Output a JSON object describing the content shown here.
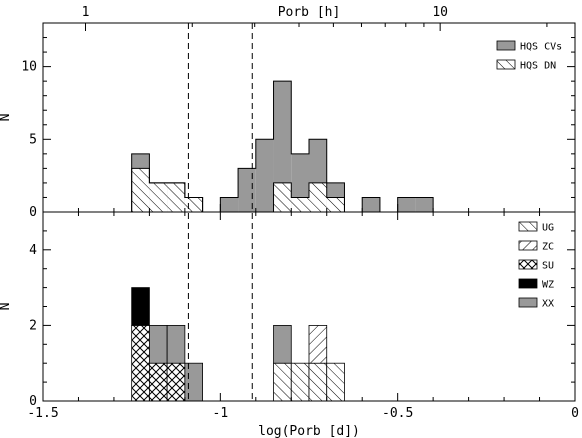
{
  "chart_data": {
    "type": "histogram",
    "x_axis": {
      "label": "log(Porb [d])",
      "range": [
        -1.5,
        0
      ],
      "tick_labels": [
        "-1.5",
        "-1",
        "-0.5",
        "0"
      ],
      "tick_values": [
        -1.5,
        -1,
        -0.5,
        0
      ]
    },
    "top_axis": {
      "label": "Porb [h]",
      "tick_labels": [
        "1",
        "10"
      ],
      "tick_values_hours": [
        1,
        10
      ]
    },
    "reference_lines": [
      -1.09,
      -0.91
    ],
    "panels": [
      {
        "name": "upper",
        "ylabel": "N",
        "ylim": [
          0,
          13
        ],
        "y_tick_labels": [
          "0",
          "5",
          "10"
        ],
        "y_tick_values": [
          0,
          5,
          10
        ],
        "bin_width": 0.05,
        "legend": [
          {
            "label": "HQS CVs",
            "fill": "gray"
          },
          {
            "label": "HQS DN",
            "fill": "hatch-diagonal"
          }
        ],
        "series": [
          {
            "name": "HQS CVs",
            "bins": [
              {
                "start": -1.25,
                "count": 4
              },
              {
                "start": -1.2,
                "count": 2
              },
              {
                "start": -1.15,
                "count": 2
              },
              {
                "start": -1.1,
                "count": 1
              },
              {
                "start": -1.0,
                "count": 1
              },
              {
                "start": -0.95,
                "count": 3
              },
              {
                "start": -0.9,
                "count": 5
              },
              {
                "start": -0.85,
                "count": 9
              },
              {
                "start": -0.8,
                "count": 4
              },
              {
                "start": -0.75,
                "count": 5
              },
              {
                "start": -0.7,
                "count": 2
              },
              {
                "start": -0.6,
                "count": 1
              },
              {
                "start": -0.5,
                "count": 1
              },
              {
                "start": -0.45,
                "count": 1
              }
            ]
          },
          {
            "name": "HQS DN",
            "bins": [
              {
                "start": -1.25,
                "count": 3
              },
              {
                "start": -1.2,
                "count": 2
              },
              {
                "start": -1.15,
                "count": 2
              },
              {
                "start": -1.1,
                "count": 1
              },
              {
                "start": -0.85,
                "count": 2
              },
              {
                "start": -0.8,
                "count": 1
              },
              {
                "start": -0.75,
                "count": 2
              },
              {
                "start": -0.7,
                "count": 1
              }
            ]
          }
        ]
      },
      {
        "name": "lower",
        "ylabel": "N",
        "ylim": [
          0,
          5
        ],
        "y_tick_labels": [
          "0",
          "2",
          "4"
        ],
        "y_tick_values": [
          0,
          2,
          4
        ],
        "bin_width": 0.05,
        "legend": [
          {
            "label": "UG",
            "fill": "hatch-diagonal"
          },
          {
            "label": "ZC",
            "fill": "hatch-backdiagonal"
          },
          {
            "label": "SU",
            "fill": "hatch-cross"
          },
          {
            "label": "WZ",
            "fill": "black"
          },
          {
            "label": "XX",
            "fill": "gray"
          }
        ],
        "stacks": [
          {
            "start": -1.25,
            "segments": [
              {
                "type": "SU",
                "count": 2
              },
              {
                "type": "WZ",
                "count": 1
              }
            ]
          },
          {
            "start": -1.2,
            "segments": [
              {
                "type": "SU",
                "count": 1
              },
              {
                "type": "XX",
                "count": 1
              }
            ]
          },
          {
            "start": -1.15,
            "segments": [
              {
                "type": "SU",
                "count": 1
              },
              {
                "type": "XX",
                "count": 1
              }
            ]
          },
          {
            "start": -1.1,
            "segments": [
              {
                "type": "XX",
                "count": 1
              }
            ]
          },
          {
            "start": -0.85,
            "segments": [
              {
                "type": "UG",
                "count": 1
              },
              {
                "type": "XX",
                "count": 1
              }
            ]
          },
          {
            "start": -0.8,
            "segments": [
              {
                "type": "UG",
                "count": 1
              }
            ]
          },
          {
            "start": -0.75,
            "segments": [
              {
                "type": "UG",
                "count": 1
              },
              {
                "type": "ZC",
                "count": 1
              }
            ]
          },
          {
            "start": -0.7,
            "segments": [
              {
                "type": "UG",
                "count": 1
              }
            ]
          }
        ]
      }
    ]
  },
  "colors": {
    "gray": "#999999",
    "black": "#000000",
    "axis": "#000000"
  }
}
